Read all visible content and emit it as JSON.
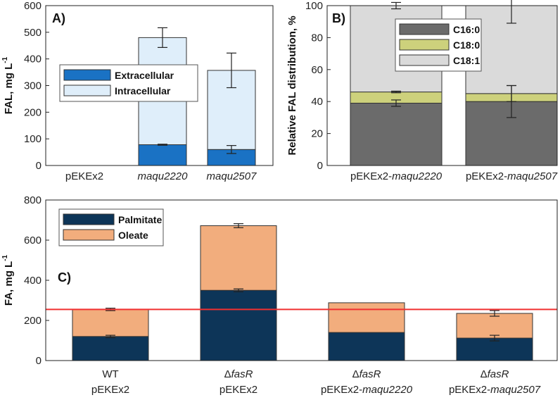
{
  "chart_data": [
    {
      "panel": "A)",
      "type": "bar",
      "stacked": true,
      "ylabel": "FAL,  mg L",
      "ylabel_sup": "-1",
      "ylim": [
        0,
        600
      ],
      "yticks": [
        0,
        100,
        200,
        300,
        400,
        500,
        600
      ],
      "categories": [
        {
          "parts": [
            {
              "text": "pEKEx2",
              "italic": false
            }
          ]
        },
        {
          "parts": [
            {
              "text": "maqu2220",
              "italic": true
            }
          ]
        },
        {
          "parts": [
            {
              "text": "maqu2507",
              "italic": true
            }
          ]
        }
      ],
      "series": [
        {
          "name": "Extracellular",
          "color": "#1a72c4",
          "values": [
            null,
            78,
            60
          ],
          "errors": [
            null,
            2,
            15
          ]
        },
        {
          "name": "Intracellular",
          "color": "#dfeefa",
          "values": [
            null,
            402,
            297
          ],
          "errors": [
            null,
            37,
            65
          ]
        }
      ],
      "legend": "left-middle"
    },
    {
      "panel": "B)",
      "type": "bar",
      "stacked": true,
      "ylabel": "Relative FAL distribution,  %",
      "ylim": [
        0,
        100
      ],
      "yticks": [
        0,
        20,
        40,
        60,
        80,
        100
      ],
      "categories": [
        {
          "parts": [
            {
              "text": "pEKEx2-",
              "italic": false
            },
            {
              "text": "maqu2220",
              "italic": true
            }
          ]
        },
        {
          "parts": [
            {
              "text": "pEKEx2-",
              "italic": false
            },
            {
              "text": "maqu2507",
              "italic": true
            }
          ]
        }
      ],
      "series": [
        {
          "name": "C16:0",
          "color": "#6b6b6b",
          "values": [
            39,
            40
          ],
          "errors": [
            2,
            10
          ]
        },
        {
          "name": "C18:0",
          "color": "#cdd17c",
          "values": [
            7,
            5
          ],
          "errors": [
            0.5,
            5
          ]
        },
        {
          "name": "C18:1",
          "color": "#dadada",
          "values": [
            54,
            55
          ],
          "errors": [
            2,
            11
          ]
        }
      ],
      "legend": "top-right"
    },
    {
      "panel": "C)",
      "type": "bar",
      "stacked": true,
      "ylabel": "FA,  mg L",
      "ylabel_sup": "-1",
      "ylim": [
        0,
        800
      ],
      "yticks": [
        0,
        200,
        400,
        600,
        800
      ],
      "reference_line": {
        "value": 255,
        "color": "#f03030"
      },
      "categories": [
        {
          "line1": [
            {
              "text": "WT",
              "italic": false
            }
          ],
          "line2": [
            {
              "text": "pEKEx2",
              "italic": false
            }
          ]
        },
        {
          "line1": [
            {
              "text": "Δ",
              "italic": false
            },
            {
              "text": "fasR",
              "italic": true
            }
          ],
          "line2": [
            {
              "text": "pEKEx2",
              "italic": false
            }
          ]
        },
        {
          "line1": [
            {
              "text": "Δ",
              "italic": false
            },
            {
              "text": "fasR",
              "italic": true
            }
          ],
          "line2": [
            {
              "text": "pEKEx2-",
              "italic": false
            },
            {
              "text": "maqu2220",
              "italic": true
            }
          ]
        },
        {
          "line1": [
            {
              "text": "Δ",
              "italic": false
            },
            {
              "text": "fasR",
              "italic": true
            }
          ],
          "line2": [
            {
              "text": "pEKEx2-",
              "italic": false
            },
            {
              "text": "maqu2507",
              "italic": true
            }
          ]
        }
      ],
      "series": [
        {
          "name": "Palmitate",
          "color": "#0d3558",
          "values": [
            120,
            350,
            140,
            112
          ],
          "errors": [
            6,
            7,
            null,
            14
          ]
        },
        {
          "name": "Oleate",
          "color": "#f2ad7d",
          "values": [
            135,
            322,
            148,
            123
          ],
          "errors": [
            6,
            10,
            null,
            14
          ]
        }
      ],
      "legend": "top-left"
    }
  ]
}
